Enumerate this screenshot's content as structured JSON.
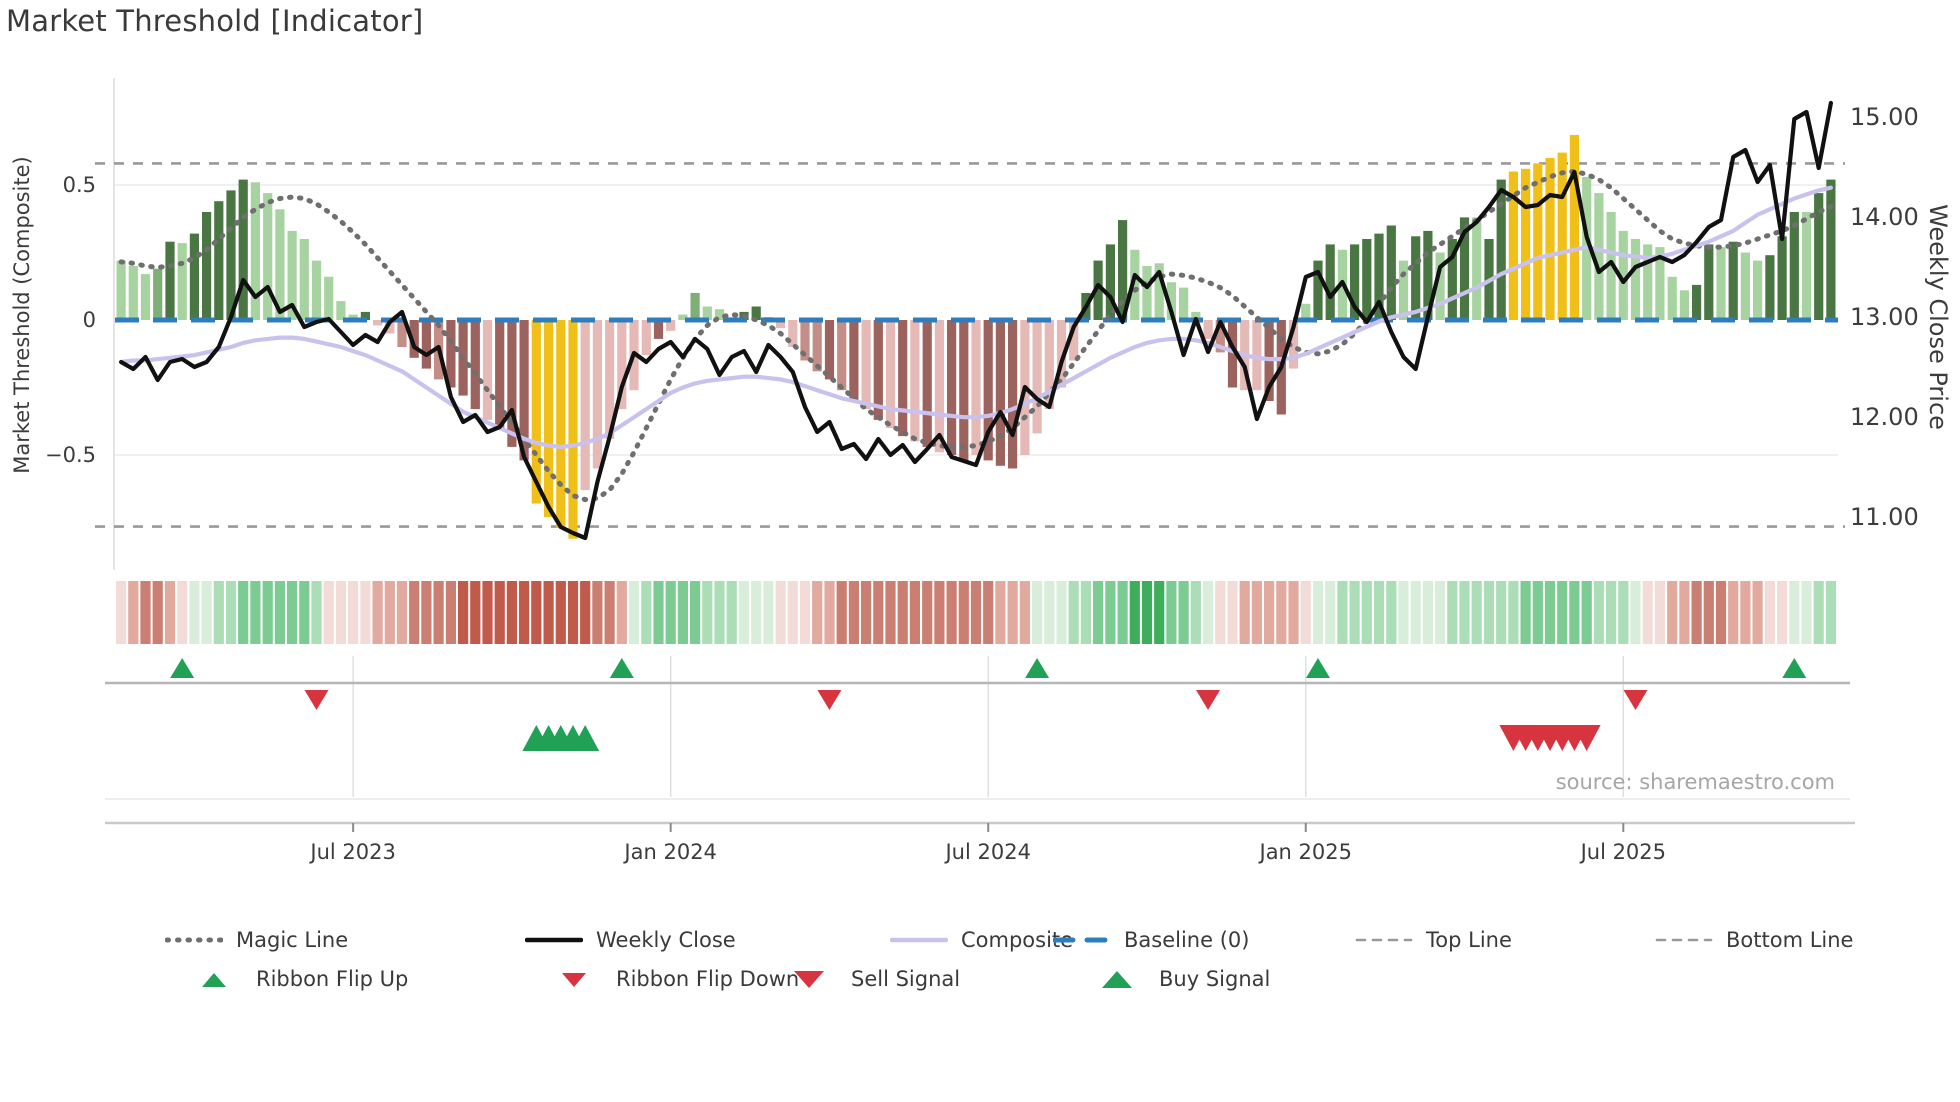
{
  "title": "Market Threshold [Indicator]",
  "source": "source: sharemaestro.com",
  "axes": {
    "left": {
      "label": "Market Threshold (Composite)",
      "ticks": [
        "0.5",
        "0",
        "−0.5"
      ],
      "tick_values": [
        0.5,
        0,
        -0.5
      ]
    },
    "right": {
      "label": "Weekly Close Price",
      "ticks": [
        "15.00",
        "14.00",
        "13.00",
        "12.00",
        "11.00"
      ],
      "tick_values": [
        15,
        14,
        13,
        12,
        11
      ]
    },
    "x": {
      "tick_labels": [
        "Jul 2023",
        "Jan 2024",
        "Jul 2024",
        "Jan 2025",
        "Jul 2025"
      ],
      "tick_weeks": [
        19,
        45,
        71,
        97,
        123
      ]
    }
  },
  "chart_data": {
    "type": "combo",
    "weeks": 141,
    "left_ylim": [
      -0.95,
      0.85
    ],
    "right_ylim": [
      10.45,
      15.35
    ],
    "reference_lines": {
      "baseline": 0,
      "top_line": 0.58,
      "bottom_line": -0.765
    },
    "bars": {
      "values": [
        0.22,
        0.2,
        0.17,
        0.19,
        0.29,
        0.285,
        0.32,
        0.4,
        0.44,
        0.48,
        0.52,
        0.51,
        0.47,
        0.41,
        0.33,
        0.3,
        0.22,
        0.16,
        0.07,
        0.02,
        0.03,
        -0.02,
        -0.05,
        -0.1,
        -0.14,
        -0.18,
        -0.22,
        -0.25,
        -0.28,
        -0.33,
        -0.37,
        -0.4,
        -0.47,
        -0.52,
        -0.68,
        -0.73,
        -0.77,
        -0.81,
        -0.63,
        -0.55,
        -0.44,
        -0.33,
        -0.26,
        -0.13,
        -0.07,
        -0.04,
        0.02,
        0.1,
        0.05,
        0.04,
        0.01,
        0.03,
        0.05,
        0.01,
        -0.03,
        -0.1,
        -0.15,
        -0.19,
        -0.22,
        -0.26,
        -0.3,
        -0.33,
        -0.37,
        -0.4,
        -0.43,
        -0.45,
        -0.47,
        -0.49,
        -0.5,
        -0.52,
        -0.5,
        -0.52,
        -0.54,
        -0.55,
        -0.5,
        -0.42,
        -0.33,
        -0.25,
        -0.15,
        0.1,
        0.22,
        0.28,
        0.37,
        0.26,
        0.2,
        0.21,
        0.14,
        0.12,
        0.03,
        -0.07,
        -0.12,
        -0.25,
        -0.26,
        -0.26,
        -0.3,
        -0.35,
        -0.18,
        0.06,
        0.22,
        0.28,
        0.26,
        0.28,
        0.3,
        0.32,
        0.35,
        0.22,
        0.31,
        0.33,
        0.25,
        0.3,
        0.38,
        0.38,
        0.3,
        0.52,
        0.55,
        0.56,
        0.58,
        0.6,
        0.62,
        0.685,
        0.53,
        0.47,
        0.4,
        0.33,
        0.3,
        0.28,
        0.27,
        0.16,
        0.11,
        0.13,
        0.28,
        0.27,
        0.29,
        0.25,
        0.22,
        0.24,
        0.31,
        0.4,
        0.4,
        0.47,
        0.52
      ],
      "colors": [
        "lg",
        "lg",
        "lg",
        "mg",
        "dg",
        "lg",
        "dg",
        "dg",
        "dg",
        "dg",
        "dg",
        "lg",
        "lg",
        "lg",
        "lg",
        "lg",
        "lg",
        "lg",
        "lg",
        "lg",
        "dg",
        "lp",
        "lp",
        "mr",
        "dr",
        "dr",
        "mr",
        "dr",
        "dr",
        "dr",
        "lp",
        "dr",
        "dr",
        "dr",
        "y",
        "y",
        "y",
        "y",
        "lp",
        "lp",
        "lp",
        "lp",
        "lp",
        "lp",
        "dr",
        "lp",
        "lg",
        "mg",
        "lg",
        "lg",
        "lg",
        "dg",
        "dg",
        "dg",
        "lp",
        "lp",
        "mr",
        "mr",
        "dr",
        "mr",
        "dr",
        "lp",
        "dr",
        "lp",
        "dr",
        "lp",
        "dr",
        "lp",
        "dr",
        "dr",
        "lp",
        "dr",
        "dr",
        "dr",
        "lp",
        "lp",
        "lp",
        "lp",
        "lp",
        "dg",
        "dg",
        "dg",
        "dg",
        "lg",
        "lg",
        "lg",
        "lg",
        "lg",
        "lg",
        "lp",
        "mr",
        "dr",
        "lp",
        "lp",
        "dr",
        "dr",
        "lp",
        "lg",
        "dg",
        "dg",
        "lg",
        "dg",
        "dg",
        "dg",
        "dg",
        "lg",
        "dg",
        "dg",
        "lg",
        "dg",
        "dg",
        "lg",
        "dg",
        "dg",
        "y",
        "y",
        "y",
        "y",
        "y",
        "y",
        "lg",
        "lg",
        "lg",
        "lg",
        "lg",
        "lg",
        "lg",
        "lg",
        "lg",
        "dg",
        "dg",
        "lg",
        "dg",
        "lg",
        "lg",
        "dg",
        "dg",
        "dg",
        "lg",
        "dg",
        "dg"
      ]
    },
    "weekly_close": [
      12.55,
      12.48,
      12.6,
      12.37,
      12.55,
      12.58,
      12.5,
      12.55,
      12.7,
      13.0,
      13.37,
      13.2,
      13.3,
      13.05,
      13.12,
      12.9,
      12.95,
      12.98,
      12.85,
      12.72,
      12.82,
      12.75,
      12.95,
      13.05,
      12.7,
      12.62,
      12.7,
      12.2,
      11.95,
      12.02,
      11.85,
      11.9,
      12.07,
      11.6,
      11.35,
      11.1,
      10.9,
      10.84,
      10.79,
      11.35,
      11.8,
      12.3,
      12.64,
      12.55,
      12.68,
      12.75,
      12.6,
      12.78,
      12.68,
      12.42,
      12.6,
      12.66,
      12.45,
      12.72,
      12.6,
      12.45,
      12.1,
      11.85,
      11.95,
      11.68,
      11.73,
      11.58,
      11.78,
      11.62,
      11.72,
      11.55,
      11.68,
      11.82,
      11.6,
      11.56,
      11.52,
      11.85,
      12.05,
      11.82,
      12.3,
      12.18,
      12.1,
      12.55,
      12.9,
      13.1,
      13.32,
      13.2,
      12.95,
      13.42,
      13.3,
      13.45,
      13.05,
      12.62,
      12.98,
      12.65,
      12.95,
      12.7,
      12.5,
      11.98,
      12.3,
      12.5,
      12.9,
      13.4,
      13.45,
      13.2,
      13.35,
      13.1,
      12.95,
      13.15,
      12.85,
      12.6,
      12.48,
      13.0,
      13.5,
      13.6,
      13.85,
      13.95,
      14.1,
      14.27,
      14.2,
      14.1,
      14.12,
      14.22,
      14.2,
      14.45,
      13.8,
      13.45,
      13.55,
      13.35,
      13.5,
      13.55,
      13.6,
      13.55,
      13.62,
      13.75,
      13.9,
      13.97,
      14.6,
      14.67,
      14.35,
      14.52,
      13.78,
      14.98,
      15.05,
      14.49,
      15.14
    ],
    "composite": [
      -0.155,
      -0.15,
      -0.15,
      -0.145,
      -0.14,
      -0.135,
      -0.13,
      -0.12,
      -0.11,
      -0.1,
      -0.085,
      -0.075,
      -0.07,
      -0.065,
      -0.065,
      -0.07,
      -0.08,
      -0.09,
      -0.1,
      -0.115,
      -0.13,
      -0.15,
      -0.17,
      -0.19,
      -0.22,
      -0.25,
      -0.28,
      -0.31,
      -0.34,
      -0.36,
      -0.38,
      -0.4,
      -0.42,
      -0.44,
      -0.455,
      -0.465,
      -0.47,
      -0.465,
      -0.455,
      -0.44,
      -0.42,
      -0.39,
      -0.36,
      -0.33,
      -0.3,
      -0.27,
      -0.25,
      -0.235,
      -0.225,
      -0.22,
      -0.215,
      -0.21,
      -0.21,
      -0.215,
      -0.22,
      -0.23,
      -0.245,
      -0.26,
      -0.275,
      -0.29,
      -0.3,
      -0.31,
      -0.32,
      -0.33,
      -0.335,
      -0.34,
      -0.345,
      -0.35,
      -0.355,
      -0.36,
      -0.36,
      -0.355,
      -0.345,
      -0.33,
      -0.31,
      -0.29,
      -0.265,
      -0.24,
      -0.215,
      -0.19,
      -0.165,
      -0.14,
      -0.12,
      -0.1,
      -0.085,
      -0.075,
      -0.07,
      -0.07,
      -0.075,
      -0.085,
      -0.1,
      -0.115,
      -0.13,
      -0.14,
      -0.145,
      -0.145,
      -0.14,
      -0.125,
      -0.105,
      -0.085,
      -0.065,
      -0.045,
      -0.025,
      -0.005,
      0.01,
      0.02,
      0.03,
      0.045,
      0.06,
      0.08,
      0.1,
      0.12,
      0.145,
      0.17,
      0.19,
      0.21,
      0.23,
      0.24,
      0.25,
      0.26,
      0.27,
      0.26,
      0.25,
      0.24,
      0.235,
      0.23,
      0.235,
      0.245,
      0.26,
      0.275,
      0.29,
      0.31,
      0.33,
      0.36,
      0.39,
      0.41,
      0.43,
      0.45,
      0.465,
      0.48,
      0.49
    ],
    "magic_line": [
      0.215,
      0.21,
      0.2,
      0.195,
      0.2,
      0.21,
      0.23,
      0.26,
      0.3,
      0.34,
      0.38,
      0.41,
      0.435,
      0.45,
      0.455,
      0.45,
      0.43,
      0.4,
      0.365,
      0.325,
      0.28,
      0.23,
      0.18,
      0.13,
      0.08,
      0.03,
      -0.02,
      -0.08,
      -0.14,
      -0.2,
      -0.26,
      -0.32,
      -0.38,
      -0.44,
      -0.5,
      -0.56,
      -0.61,
      -0.65,
      -0.665,
      -0.66,
      -0.63,
      -0.57,
      -0.49,
      -0.4,
      -0.31,
      -0.22,
      -0.14,
      -0.07,
      -0.02,
      0.01,
      0.02,
      0.015,
      0.0,
      -0.02,
      -0.05,
      -0.09,
      -0.13,
      -0.17,
      -0.21,
      -0.25,
      -0.29,
      -0.33,
      -0.36,
      -0.39,
      -0.415,
      -0.44,
      -0.455,
      -0.465,
      -0.47,
      -0.47,
      -0.465,
      -0.45,
      -0.43,
      -0.4,
      -0.36,
      -0.32,
      -0.27,
      -0.22,
      -0.16,
      -0.1,
      -0.04,
      0.02,
      0.07,
      0.11,
      0.14,
      0.16,
      0.17,
      0.165,
      0.155,
      0.14,
      0.12,
      0.09,
      0.05,
      0.01,
      -0.03,
      -0.07,
      -0.1,
      -0.12,
      -0.125,
      -0.115,
      -0.09,
      -0.05,
      0.0,
      0.06,
      0.12,
      0.17,
      0.21,
      0.25,
      0.28,
      0.31,
      0.34,
      0.37,
      0.4,
      0.43,
      0.46,
      0.49,
      0.51,
      0.53,
      0.545,
      0.55,
      0.54,
      0.52,
      0.49,
      0.45,
      0.41,
      0.37,
      0.33,
      0.3,
      0.285,
      0.275,
      0.27,
      0.27,
      0.275,
      0.285,
      0.3,
      0.315,
      0.33,
      0.35,
      0.375,
      0.4,
      0.42
    ],
    "ribbon": [
      -1,
      -2,
      -3,
      -3,
      -2,
      -1,
      1,
      1,
      2,
      2,
      3,
      3,
      3,
      3,
      3,
      3,
      2,
      -1,
      -1,
      -1,
      -1,
      -2,
      -2,
      -2,
      -3,
      -3,
      -3,
      -3,
      -4,
      -4,
      -4,
      -4,
      -4,
      -4,
      -4,
      -4,
      -4,
      -4,
      -4,
      -3,
      -3,
      -2,
      1,
      2,
      3,
      3,
      3,
      3,
      2,
      2,
      2,
      1,
      1,
      1,
      -1,
      -1,
      -1,
      -2,
      -2,
      -3,
      -3,
      -3,
      -3,
      -3,
      -3,
      -3,
      -3,
      -3,
      -3,
      -3,
      -3,
      -3,
      -2,
      -2,
      -2,
      1,
      1,
      1,
      2,
      2,
      3,
      3,
      3,
      4,
      4,
      4,
      3,
      3,
      2,
      1,
      -1,
      -1,
      -2,
      -2,
      -2,
      -2,
      -2,
      -1,
      1,
      1,
      2,
      2,
      2,
      2,
      2,
      1,
      1,
      1,
      1,
      2,
      2,
      2,
      2,
      2,
      2,
      3,
      3,
      3,
      3,
      3,
      3,
      2,
      2,
      2,
      1,
      -1,
      -1,
      -2,
      -2,
      -3,
      -3,
      -3,
      -2,
      -2,
      -2,
      -1,
      -1,
      1,
      1,
      2,
      2
    ],
    "signals": {
      "ribbon_flip_up_weeks": [
        5,
        41,
        75,
        98,
        137
      ],
      "ribbon_flip_down_weeks": [
        16,
        58,
        89,
        124
      ],
      "buy_signal_weeks": [
        34,
        35,
        36,
        37,
        38
      ],
      "sell_signal_weeks": [
        114,
        115,
        116,
        117,
        118,
        119,
        120
      ]
    }
  },
  "legend": {
    "row1": [
      {
        "label": "Magic Line",
        "swatch": "dotted-gray"
      },
      {
        "label": "Weekly Close",
        "swatch": "solid-black"
      },
      {
        "label": "Composite",
        "swatch": "solid-lavender"
      },
      {
        "label": "Baseline (0)",
        "swatch": "dashed-blue"
      },
      {
        "label": "Top Line",
        "swatch": "dashed-gray"
      },
      {
        "label": "Bottom Line",
        "swatch": "dashed-gray"
      }
    ],
    "row2": [
      {
        "label": "Ribbon Flip Up",
        "swatch": "triangle-up-green"
      },
      {
        "label": "Ribbon Flip Down",
        "swatch": "triangle-down-red"
      },
      {
        "label": "Sell Signal",
        "swatch": "triangle-down-red-large"
      },
      {
        "label": "Buy Signal",
        "swatch": "triangle-up-green-large"
      }
    ]
  },
  "palette": {
    "bar": {
      "lg": "#a7d3a1",
      "mg": "#7fae76",
      "dg": "#4a7643",
      "y": "#f0c018",
      "lp": "#e5b9b5",
      "mr": "#c48e86",
      "dr": "#9c625d"
    },
    "ribbon": {
      "p1": "#d8eeda",
      "p2": "#abddb7",
      "p3": "#7ccb93",
      "p4": "#3fae5c",
      "m1": "#f3dcd8",
      "m2": "#e2a99f",
      "m3": "#cb7f72",
      "m4": "#c05a4b"
    },
    "magic_line": "#6f6f6f",
    "weekly_close": "#111111",
    "composite": "#c9c2ee",
    "baseline": "#2e7ebf",
    "reference": "#999999",
    "grid": "#e9ecef",
    "axis": "#c9c9c9",
    "signal_green": "#21a156",
    "signal_red": "#d8343f",
    "text": "#3c3c3c",
    "muted_text": "#a6a6a6"
  }
}
